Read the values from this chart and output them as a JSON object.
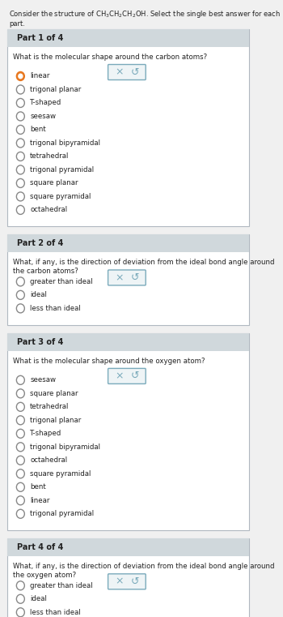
{
  "title": "Consider the structure of CH₃CH₂CH₂OH. Select the single best answer for each part.",
  "bg_color": "#f0f0f0",
  "panel_bg": "#ffffff",
  "header_bg": "#d0d8dc",
  "border_color": "#b0b8c0",
  "text_color": "#222222",
  "radio_color": "#888888",
  "selected_radio_color": "#e87820",
  "button_border": "#7aaabb",
  "button_bg": "#eef4f6",
  "parts": [
    {
      "header": "Part 1 of 4",
      "question": "What is the molecular shape around the carbon atoms?",
      "options": [
        "linear",
        "trigonal planar",
        "T-shaped",
        "seesaw",
        "bent",
        "trigonal bipyramidal",
        "tetrahedral",
        "trigonal pyramidal",
        "square planar",
        "square pyramidal",
        "octahedral"
      ],
      "selected": 0,
      "show_button": true
    },
    {
      "header": "Part 2 of 4",
      "question": "What, if any, is the direction of deviation from the ideal bond angle around the carbon atoms?",
      "options": [
        "greater than ideal",
        "ideal",
        "less than ideal"
      ],
      "selected": -1,
      "show_button": true
    },
    {
      "header": "Part 3 of 4",
      "question": "What is the molecular shape around the oxygen atom?",
      "options": [
        "seesaw",
        "square planar",
        "tetrahedral",
        "trigonal planar",
        "T-shaped",
        "trigonal bipyramidal",
        "octahedral",
        "square pyramidal",
        "bent",
        "linear",
        "trigonal pyramidal"
      ],
      "selected": -1,
      "show_button": true
    },
    {
      "header": "Part 4 of 4",
      "question": "What, if any, is the direction of deviation from the ideal bond angle around the oxygen atom?",
      "options": [
        "greater than ideal",
        "ideal",
        "less than ideal"
      ],
      "selected": -1,
      "show_button": true
    }
  ]
}
